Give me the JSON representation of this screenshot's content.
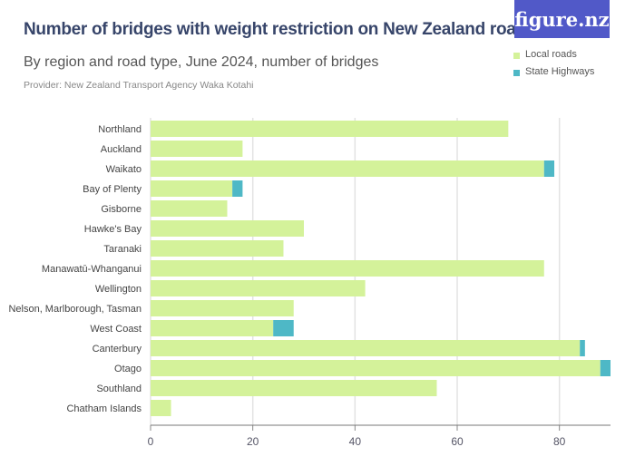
{
  "title": "Number of bridges with weight restriction on New Zealand roads",
  "subtitle": "By region and road type, June 2024, number of bridges",
  "provider": "Provider: New Zealand Transport Agency Waka Kotahi",
  "logo": "figure.nz",
  "colors": {
    "local": "#d4f29a",
    "state": "#4eb8c6"
  },
  "chart_data": {
    "type": "bar",
    "orientation": "horizontal",
    "stacked": true,
    "categories": [
      "Northland",
      "Auckland",
      "Waikato",
      "Bay of Plenty",
      "Gisborne",
      "Hawke's Bay",
      "Taranaki",
      "Manawatū-Whanganui",
      "Wellington",
      "Nelson, Marlborough, Tasman",
      "West Coast",
      "Canterbury",
      "Otago",
      "Southland",
      "Chatham Islands"
    ],
    "series": [
      {
        "name": "Local roads",
        "values": [
          70,
          18,
          77,
          16,
          15,
          30,
          26,
          77,
          42,
          28,
          24,
          84,
          88,
          56,
          4
        ]
      },
      {
        "name": "State Highways",
        "values": [
          0,
          0,
          2,
          2,
          0,
          0,
          0,
          0,
          0,
          0,
          4,
          1,
          2,
          0,
          0
        ]
      }
    ],
    "xlim": [
      0,
      90
    ],
    "xticks": [
      "0",
      "20",
      "40",
      "60",
      "80"
    ],
    "grid": true,
    "legend": "top-right"
  }
}
